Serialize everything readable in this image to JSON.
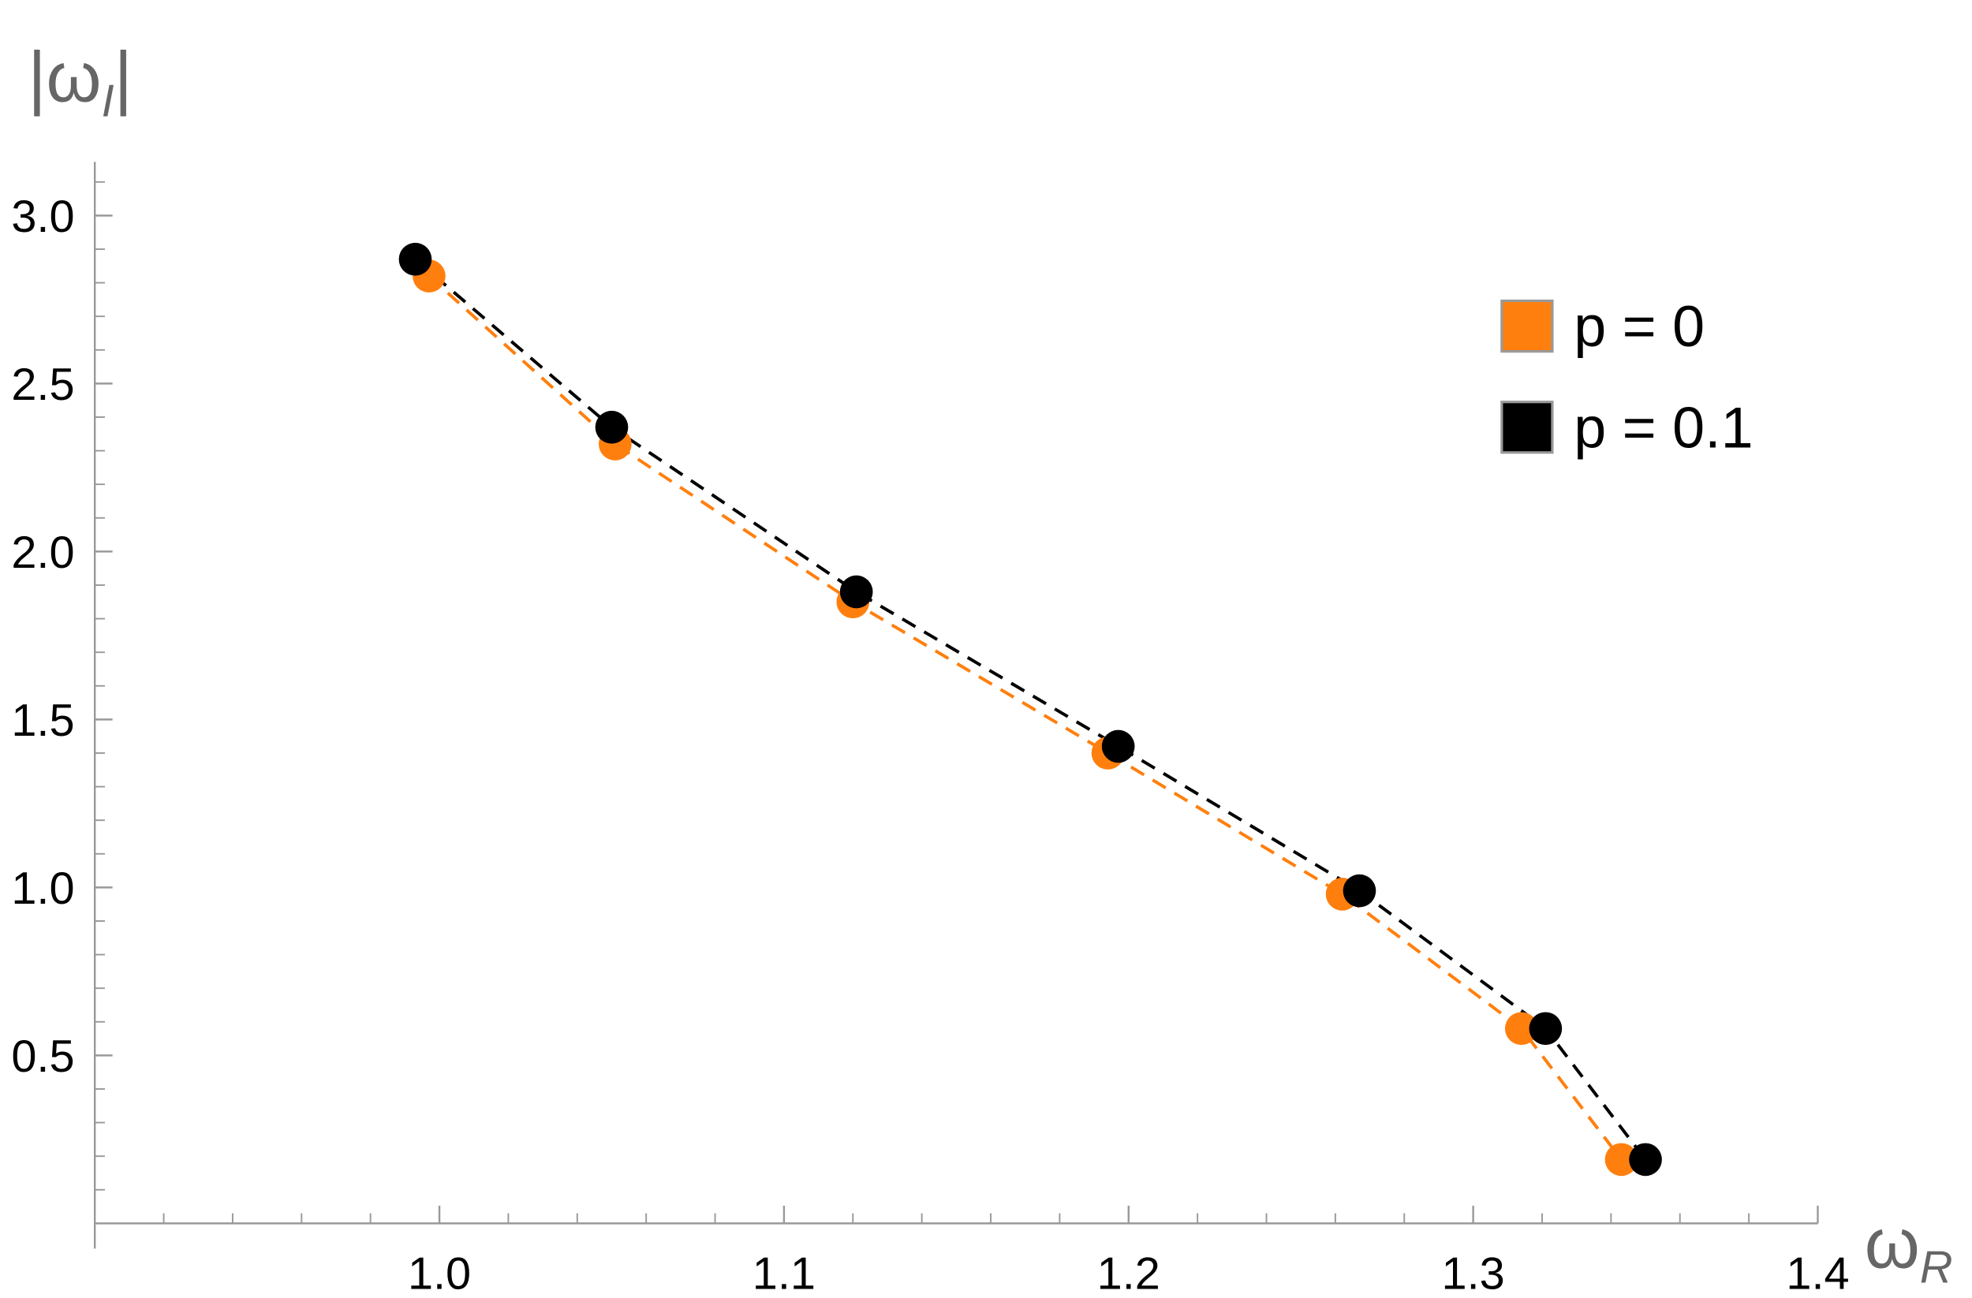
{
  "chart_data": {
    "type": "scatter",
    "xlabel": [
      "ω",
      "R"
    ],
    "ylabel": [
      "|ω",
      "I",
      "|"
    ],
    "xlim": [
      0.9,
      1.4
    ],
    "ylim": [
      0,
      3.16
    ],
    "xticks": [
      {
        "value": 1,
        "label": "1.0"
      },
      1.1,
      1.2,
      1.3,
      1.4
    ],
    "yticks": [
      0.5,
      {
        "value": 1,
        "label": "1.0"
      },
      1.5,
      {
        "value": 2,
        "label": "2.0"
      },
      2.5,
      {
        "value": 3,
        "label": "3.0"
      }
    ],
    "xminorticks": [
      0.92,
      0.94,
      0.96,
      0.98,
      1.02,
      1.04,
      1.06,
      1.08,
      1.12,
      1.14,
      1.16,
      1.18,
      1.22,
      1.24,
      1.26,
      1.28,
      1.32,
      1.34,
      1.36,
      1.38
    ],
    "yminorticks": [
      0.1,
      0.2,
      0.3,
      0.4,
      0.6,
      0.7,
      0.8,
      0.9,
      1.1,
      1.2,
      1.3,
      1.4,
      1.6,
      1.7,
      1.8,
      1.9,
      2.1,
      2.2,
      2.3,
      2.4,
      2.6,
      2.7,
      2.8,
      2.9,
      3.1
    ],
    "legend": "top-right",
    "series": [
      {
        "name": "p = 0",
        "color": "#ff7f0e",
        "x": [
          0.997,
          1.051,
          1.12,
          1.194,
          1.262,
          1.314,
          1.343
        ],
        "values": [
          2.82,
          2.32,
          1.85,
          1.4,
          0.98,
          0.58,
          0.19
        ]
      },
      {
        "name": "p = 0.1",
        "color": "#000000",
        "x": [
          0.993,
          1.05,
          1.121,
          1.197,
          1.267,
          1.321,
          1.35
        ],
        "values": [
          2.87,
          2.37,
          1.88,
          1.42,
          0.99,
          0.58,
          0.19
        ]
      }
    ]
  }
}
